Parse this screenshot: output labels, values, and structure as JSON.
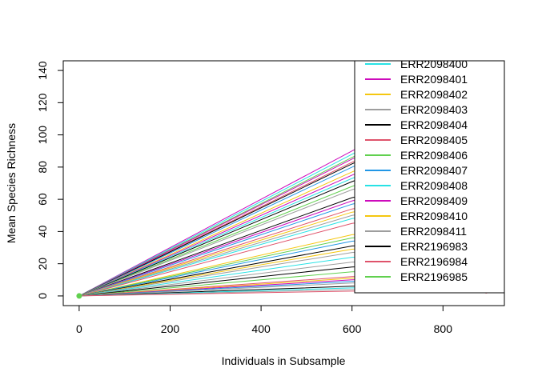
{
  "chart_data": {
    "type": "line",
    "title": "",
    "xlabel": "Individuals in Subsample",
    "ylabel": "Mean Species Richness",
    "xlim": [
      -35,
      935
    ],
    "ylim": [
      -6,
      146
    ],
    "x_ticks": [
      0,
      200,
      400,
      600,
      800
    ],
    "y_ticks": [
      0,
      20,
      40,
      60,
      80,
      100,
      120,
      140
    ],
    "grid": false,
    "legend_position": "top-right",
    "legend": [
      {
        "name": "ERR2098400",
        "color": "#28E2E5"
      },
      {
        "name": "ERR2098401",
        "color": "#CD0BBC"
      },
      {
        "name": "ERR2098402",
        "color": "#F5C710"
      },
      {
        "name": "ERR2098403",
        "color": "#9E9E9E"
      },
      {
        "name": "ERR2098404",
        "color": "#000000"
      },
      {
        "name": "ERR2098405",
        "color": "#DF536B"
      },
      {
        "name": "ERR2098406",
        "color": "#61D04F"
      },
      {
        "name": "ERR2098407",
        "color": "#2297E6"
      },
      {
        "name": "ERR2098408",
        "color": "#28E2E5"
      },
      {
        "name": "ERR2098409",
        "color": "#CD0BBC"
      },
      {
        "name": "ERR2098410",
        "color": "#F5C710"
      },
      {
        "name": "ERR2098411",
        "color": "#9E9E9E"
      },
      {
        "name": "ERR2196983",
        "color": "#000000"
      },
      {
        "name": "ERR2196984",
        "color": "#DF536B"
      },
      {
        "name": "ERR2196985",
        "color": "#61D04F"
      }
    ],
    "series": [
      {
        "color": "#CD0BBC",
        "values": [
          [
            0,
            0
          ],
          [
            600,
            90
          ],
          [
            895,
            133
          ]
        ]
      },
      {
        "color": "#28E2E5",
        "values": [
          [
            0,
            0
          ],
          [
            600,
            88
          ],
          [
            895,
            129
          ]
        ]
      },
      {
        "color": "#61D04F",
        "values": [
          [
            0,
            0
          ],
          [
            600,
            86
          ],
          [
            895,
            126
          ]
        ]
      },
      {
        "color": "#CD0BBC",
        "values": [
          [
            0,
            0
          ],
          [
            600,
            85
          ],
          [
            895,
            123
          ]
        ]
      },
      {
        "color": "#DF536B",
        "values": [
          [
            0,
            0
          ],
          [
            600,
            83
          ],
          [
            895,
            120
          ]
        ]
      },
      {
        "color": "#000000",
        "values": [
          [
            0,
            0
          ],
          [
            600,
            82
          ],
          [
            895,
            118
          ]
        ]
      },
      {
        "color": "#2297E6",
        "values": [
          [
            0,
            0
          ],
          [
            600,
            80
          ],
          [
            895,
            115
          ]
        ]
      },
      {
        "color": "#F5C710",
        "values": [
          [
            0,
            0
          ],
          [
            600,
            77
          ],
          [
            895,
            110
          ]
        ]
      },
      {
        "color": "#CD0BBC",
        "values": [
          [
            0,
            0
          ],
          [
            600,
            75
          ],
          [
            895,
            107
          ]
        ]
      },
      {
        "color": "#28E2E5",
        "values": [
          [
            0,
            0
          ],
          [
            600,
            73
          ],
          [
            895,
            104
          ]
        ]
      },
      {
        "color": "#000000",
        "values": [
          [
            0,
            0
          ],
          [
            600,
            71
          ],
          [
            895,
            101
          ]
        ]
      },
      {
        "color": "#61D04F",
        "values": [
          [
            0,
            0
          ],
          [
            600,
            68
          ],
          [
            895,
            96
          ]
        ]
      },
      {
        "color": "#9E9E9E",
        "values": [
          [
            0,
            0
          ],
          [
            600,
            66
          ],
          [
            895,
            91
          ]
        ]
      },
      {
        "color": "#000000",
        "values": [
          [
            0,
            0
          ],
          [
            600,
            61
          ],
          [
            895,
            81
          ]
        ]
      },
      {
        "color": "#CD0BBC",
        "values": [
          [
            0,
            0
          ],
          [
            600,
            59
          ],
          [
            895,
            79
          ]
        ]
      },
      {
        "color": "#2297E6",
        "values": [
          [
            0,
            0
          ],
          [
            600,
            57
          ],
          [
            895,
            75
          ]
        ]
      },
      {
        "color": "#DF536B",
        "values": [
          [
            0,
            0
          ],
          [
            600,
            54
          ],
          [
            895,
            68
          ]
        ]
      },
      {
        "color": "#F5C710",
        "values": [
          [
            0,
            0
          ],
          [
            600,
            52
          ],
          [
            895,
            64
          ]
        ]
      },
      {
        "color": "#9E9E9E",
        "values": [
          [
            0,
            0
          ],
          [
            600,
            50
          ],
          [
            895,
            63
          ]
        ]
      },
      {
        "color": "#28E2E5",
        "values": [
          [
            0,
            0
          ],
          [
            600,
            48
          ],
          [
            895,
            60
          ]
        ]
      },
      {
        "color": "#DF536B",
        "values": [
          [
            0,
            0
          ],
          [
            600,
            45
          ],
          [
            895,
            56
          ]
        ]
      },
      {
        "color": "#F5C710",
        "values": [
          [
            0,
            0
          ],
          [
            600,
            38
          ],
          [
            895,
            45
          ]
        ]
      },
      {
        "color": "#61D04F",
        "values": [
          [
            0,
            0
          ],
          [
            600,
            36
          ],
          [
            895,
            42
          ]
        ]
      },
      {
        "color": "#2297E6",
        "values": [
          [
            0,
            0
          ],
          [
            600,
            34
          ],
          [
            895,
            40
          ]
        ]
      },
      {
        "color": "#000000",
        "values": [
          [
            0,
            0
          ],
          [
            600,
            31
          ],
          [
            895,
            35
          ]
        ]
      },
      {
        "color": "#F5C710",
        "values": [
          [
            0,
            0
          ],
          [
            600,
            29
          ],
          [
            895,
            33
          ]
        ]
      },
      {
        "color": "#9E9E9E",
        "values": [
          [
            0,
            0
          ],
          [
            600,
            27
          ],
          [
            895,
            32
          ]
        ]
      },
      {
        "color": "#28E2E5",
        "values": [
          [
            0,
            0
          ],
          [
            600,
            24
          ],
          [
            895,
            28
          ]
        ]
      },
      {
        "color": "#9E9E9E",
        "values": [
          [
            0,
            0
          ],
          [
            600,
            21
          ],
          [
            895,
            23
          ]
        ]
      },
      {
        "color": "#000000",
        "values": [
          [
            0,
            0
          ],
          [
            600,
            18
          ],
          [
            895,
            21
          ]
        ]
      },
      {
        "color": "#61D04F",
        "values": [
          [
            0,
            0
          ],
          [
            600,
            15
          ],
          [
            895,
            17
          ]
        ]
      },
      {
        "color": "#DF536B",
        "values": [
          [
            0,
            0
          ],
          [
            600,
            12
          ],
          [
            895,
            14
          ]
        ]
      },
      {
        "color": "#F5C710",
        "values": [
          [
            0,
            0
          ],
          [
            600,
            11
          ],
          [
            895,
            13
          ]
        ]
      },
      {
        "color": "#CD0BBC",
        "values": [
          [
            0,
            0
          ],
          [
            600,
            10
          ],
          [
            895,
            12
          ]
        ]
      },
      {
        "color": "#2297E6",
        "values": [
          [
            0,
            0
          ],
          [
            600,
            9
          ],
          [
            895,
            11
          ]
        ]
      },
      {
        "color": "#9E9E9E",
        "values": [
          [
            0,
            0
          ],
          [
            600,
            8
          ],
          [
            895,
            10
          ]
        ]
      },
      {
        "color": "#000000",
        "values": [
          [
            0,
            0
          ],
          [
            600,
            6
          ],
          [
            895,
            7
          ]
        ]
      },
      {
        "color": "#28E2E5",
        "values": [
          [
            0,
            0
          ],
          [
            600,
            5
          ],
          [
            895,
            6
          ]
        ]
      },
      {
        "color": "#9E9E9E",
        "values": [
          [
            0,
            0
          ],
          [
            600,
            4
          ],
          [
            895,
            4
          ]
        ]
      },
      {
        "color": "#DF536B",
        "values": [
          [
            0,
            0
          ],
          [
            600,
            3
          ],
          [
            895,
            3
          ]
        ]
      }
    ],
    "origin_point": {
      "x": 0,
      "y": 0,
      "color": "#61D04F"
    }
  }
}
